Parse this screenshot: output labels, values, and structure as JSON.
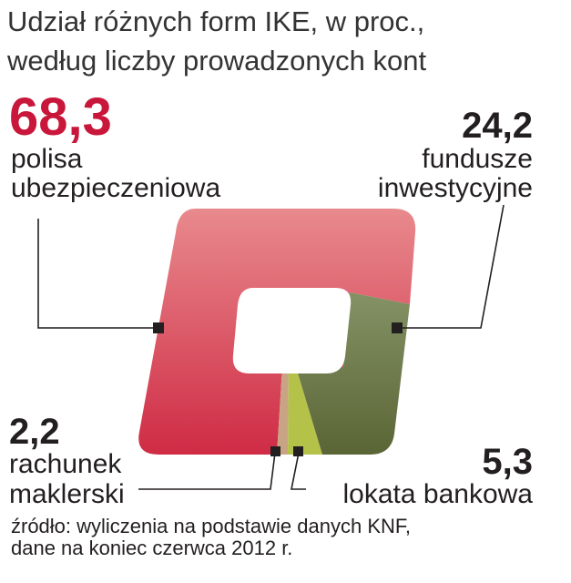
{
  "title": {
    "line1": "Udział różnych form IKE, w proc.,",
    "line2": "według liczby prowadzonych kont"
  },
  "labels": {
    "polisa": {
      "value": "68,3",
      "line1": "polisa",
      "line2": "ubezpieczeniowa"
    },
    "fundusze": {
      "value": "24,2",
      "line1": "fundusze",
      "line2": "inwestycyjne"
    },
    "rachunek": {
      "value": "2,2",
      "line1": "rachunek",
      "line2": "maklerski"
    },
    "lokata": {
      "value": "5,3",
      "line1": "lokata bankowa"
    }
  },
  "source": {
    "line1": "źródło: wyliczenia na podstawie danych KNF,",
    "line2": "dane na koniec czerwca 2012 r."
  },
  "chart_data": {
    "type": "pie",
    "title": "Udział różnych form IKE, w proc., według liczby prowadzonych kont",
    "unit": "proc.",
    "series": [
      {
        "name": "polisa ubezpieczeniowa",
        "value": 68.3,
        "color": "#d84457"
      },
      {
        "name": "rachunek maklerski",
        "value": 2.2,
        "color": "#c8a485"
      },
      {
        "name": "lokata bankowa",
        "value": 5.3,
        "color": "#b4c24a"
      },
      {
        "name": "fundusze inwestycyjne",
        "value": 24.2,
        "color": "#6e7a45"
      }
    ]
  },
  "colors": {
    "accent": "#c8173a",
    "polisa_light": "#e88a8d",
    "polisa_dark": "#cf2b45",
    "fundusze_light": "#849265",
    "fundusze_dark": "#5a6535"
  }
}
